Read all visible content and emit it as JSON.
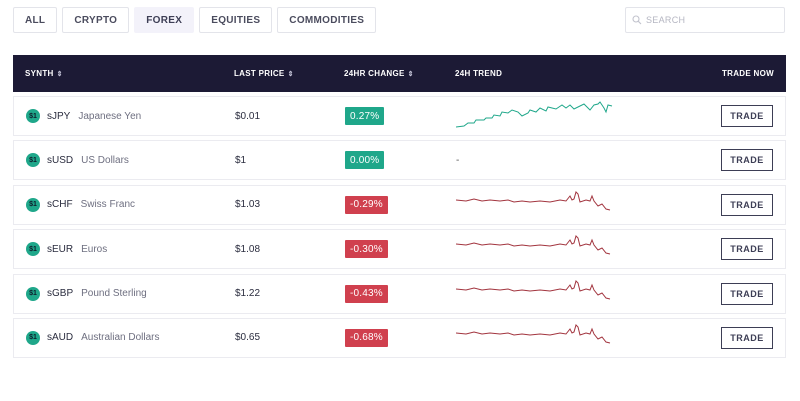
{
  "filters": [
    {
      "label": "ALL",
      "active": false
    },
    {
      "label": "CRYPTO",
      "active": false
    },
    {
      "label": "FOREX",
      "active": true
    },
    {
      "label": "EQUITIES",
      "active": false
    },
    {
      "label": "COMMODITIES",
      "active": false
    }
  ],
  "search": {
    "placeholder": "SEARCH",
    "icon": "search-icon"
  },
  "table": {
    "headers": {
      "synth": "SYNTH",
      "last_price": "LAST PRICE",
      "change": "24HR CHANGE",
      "trend": "24H TREND",
      "trade": "TRADE NOW"
    },
    "sort_glyph": "⇕",
    "icon_text": "$1",
    "rows": [
      {
        "symbol": "sJPY",
        "name": "Japanese Yen",
        "price": "$0.01",
        "change": "0.27%",
        "trend": "up",
        "trend_text": "",
        "trade_label": "TRADE"
      },
      {
        "symbol": "sUSD",
        "name": "US Dollars",
        "price": "$1",
        "change": "0.00%",
        "trend": "none",
        "trend_text": "-",
        "trade_label": "TRADE"
      },
      {
        "symbol": "sCHF",
        "name": "Swiss Franc",
        "price": "$1.03",
        "change": "-0.29%",
        "trend": "down",
        "trend_text": "",
        "trade_label": "TRADE"
      },
      {
        "symbol": "sEUR",
        "name": "Euros",
        "price": "$1.08",
        "change": "-0.30%",
        "trend": "down",
        "trend_text": "",
        "trade_label": "TRADE"
      },
      {
        "symbol": "sGBP",
        "name": "Pound Sterling",
        "price": "$1.22",
        "change": "-0.43%",
        "trend": "down",
        "trend_text": "",
        "trade_label": "TRADE"
      },
      {
        "symbol": "sAUD",
        "name": "Australian Dollars",
        "price": "$0.65",
        "change": "-0.68%",
        "trend": "down",
        "trend_text": "",
        "trade_label": "TRADE"
      }
    ]
  },
  "colors": {
    "header_bg": "#1c1a35",
    "positive": "#1fa78a",
    "negative": "#d0404e",
    "trend_up": "#1fa78a",
    "trend_down": "#a2343e"
  }
}
